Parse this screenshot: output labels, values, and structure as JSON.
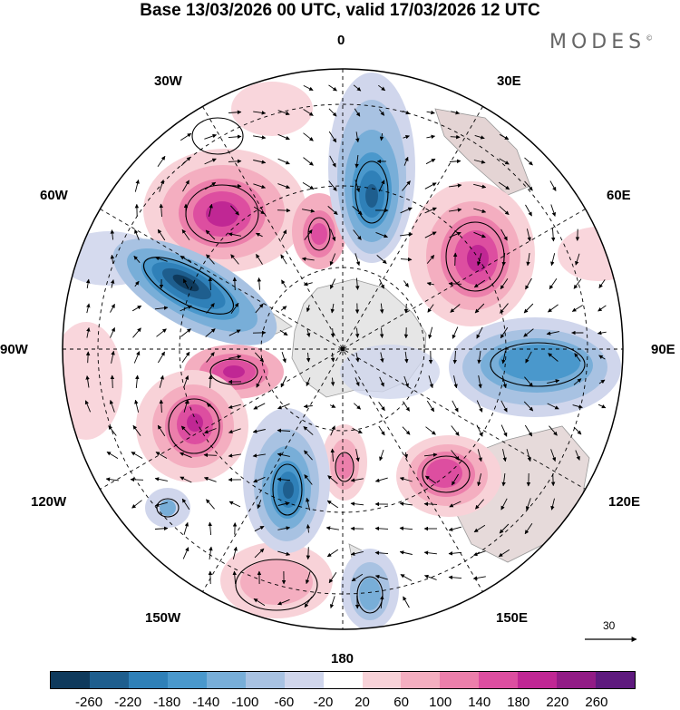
{
  "title": "Base 13/03/2026 00 UTC, valid 17/03/2026 12 UTC",
  "brand": "MODES",
  "brand_mark": "©",
  "longitude_labels": {
    "lon_0": "0",
    "lon_30e": "30E",
    "lon_60e": "60E",
    "lon_90e": "90E",
    "lon_120e": "120E",
    "lon_150e": "150E",
    "lon_180": "180",
    "lon_150w": "150W",
    "lon_120w": "120W",
    "lon_90w": "90W",
    "lon_60w": "60W",
    "lon_30w": "30W"
  },
  "reference_vector_label": "30",
  "colorbar": {
    "ticks": [
      "-260",
      "-220",
      "-180",
      "-140",
      "-100",
      "-60",
      "-20",
      "20",
      "60",
      "100",
      "140",
      "180",
      "220",
      "260"
    ],
    "colors": [
      "#0f3a5c",
      "#1e5e8e",
      "#2f80b8",
      "#4a98cc",
      "#78aed8",
      "#a8c2e2",
      "#d0d6ec",
      "#ffffff",
      "#f8d2d8",
      "#f4aec0",
      "#ec7fab",
      "#dd4ea0",
      "#c02794",
      "#921c86",
      "#5e1a7e"
    ]
  }
}
